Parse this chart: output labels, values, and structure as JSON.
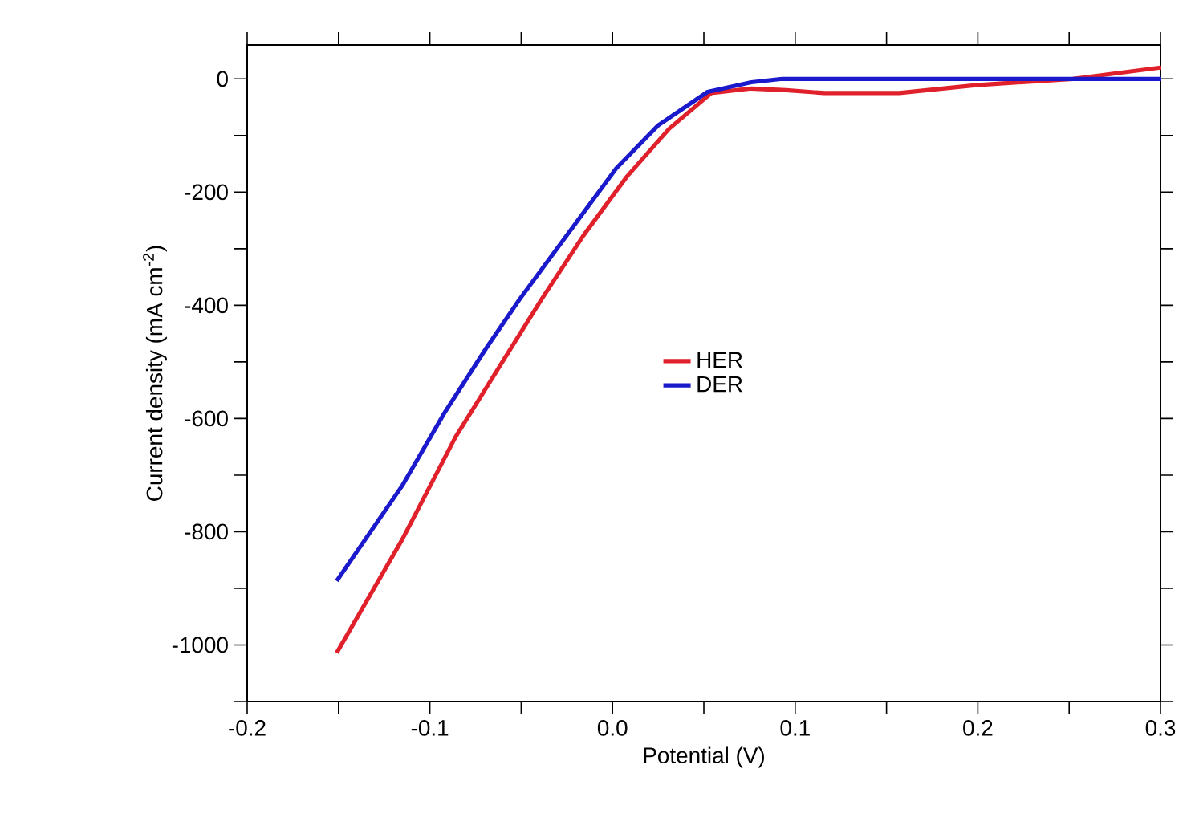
{
  "chart_data": {
    "type": "line",
    "xlabel": "Potential (V)",
    "ylabel": "Current density (mA cm$^{-2}$)",
    "xlim": [
      -0.2,
      0.3
    ],
    "ylim": [
      -1100,
      60
    ],
    "xticks": [
      -0.2,
      {
        "value": -0.15,
        "label": null
      },
      -0.1,
      {
        "value": -0.05,
        "label": null
      },
      {
        "value": 0,
        "label": "0.0"
      },
      {
        "value": 0.05,
        "label": null
      },
      0.1,
      {
        "value": 0.15,
        "label": null
      },
      0.2,
      {
        "value": 0.25,
        "label": null
      },
      0.3
    ],
    "yticks": [
      {
        "value": -1100,
        "label": null
      },
      -1000,
      {
        "value": -900,
        "label": null
      },
      -800,
      {
        "value": -700,
        "label": null
      },
      -600,
      {
        "value": -500,
        "label": null
      },
      -400,
      {
        "value": -300,
        "label": null
      },
      -200,
      {
        "value": -100,
        "label": null
      },
      0
    ],
    "legend": "center",
    "grid": false,
    "marker": "none",
    "line_style": "solid",
    "series": [
      {
        "name": "HER",
        "color": "#e0202a",
        "x": [
          -0.151,
          -0.115,
          -0.086,
          -0.057,
          -0.039,
          -0.016,
          0.008,
          0.031,
          0.054,
          0.076,
          0.095,
          0.116,
          0.157,
          0.199,
          0.252,
          0.3
        ],
        "values": [
          -1014,
          -813,
          -633,
          -483,
          -390,
          -277,
          -172,
          -88,
          -25,
          -17,
          -20,
          -25,
          -25,
          -11,
          0,
          20
        ]
      },
      {
        "name": "DER",
        "color": "#1a1acc",
        "x": [
          -0.151,
          -0.115,
          -0.092,
          -0.069,
          -0.051,
          -0.027,
          0.002,
          0.025,
          0.052,
          0.076,
          0.093,
          0.3
        ],
        "values": [
          -887,
          -718,
          -590,
          -475,
          -390,
          -285,
          -158,
          -82,
          -23,
          -6,
          0,
          0
        ]
      }
    ]
  }
}
